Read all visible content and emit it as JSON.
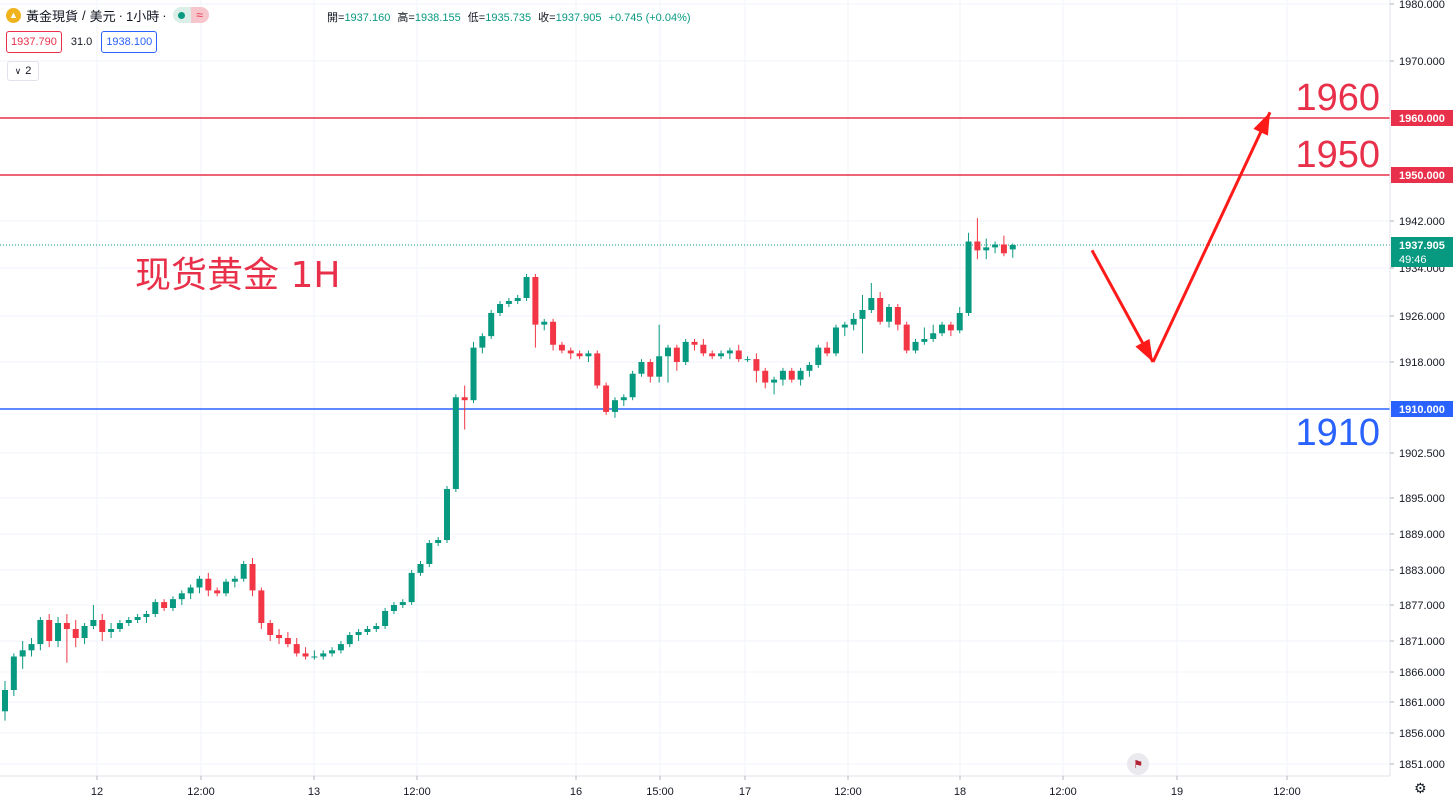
{
  "header": {
    "symbol": "黃金現貨",
    "sep": "/",
    "currency": "美元",
    "interval": "1小時",
    "open_label": "開=",
    "open": "1937.160",
    "high_label": "高=",
    "high": "1938.155",
    "low_label": "低=",
    "low": "1935.735",
    "close_label": "收=",
    "close": "1937.905",
    "change": "+0.745 (+0.04%)"
  },
  "quote": {
    "sell": "1937.790",
    "spread": "31.0",
    "buy": "1938.100"
  },
  "indicators_toggle": "2",
  "colors": {
    "up": "#089981",
    "down": "#f23645",
    "resistance": "#e8304a",
    "support": "#2962ff",
    "arrow": "#ff1a1a"
  },
  "chart_data": {
    "type": "candlestick",
    "annotation": "现货黄金 1H",
    "y_ticks": [
      "1980.000",
      "1970.000",
      "1942.000",
      "1934.000",
      "1926.000",
      "1918.000",
      "1902.500",
      "1895.000",
      "1889.000",
      "1883.000",
      "1877.000",
      "1871.000",
      "1866.000",
      "1861.000",
      "1856.000",
      "1851.000"
    ],
    "x_ticks": [
      "12",
      "12:00",
      "13",
      "12:00",
      "16",
      "15:00",
      "17",
      "12:00",
      "18",
      "12:00",
      "19",
      "12:00"
    ],
    "horizontal_lines": [
      {
        "value": 1960,
        "label": "1960.000",
        "big_label": "1960",
        "color": "#e8304a"
      },
      {
        "value": 1950,
        "label": "1950.000",
        "big_label": "1950",
        "color": "#e8304a"
      },
      {
        "value": 1910,
        "label": "1910.000",
        "big_label": "1910",
        "color": "#2962ff"
      }
    ],
    "last_price": {
      "value": 1937.905,
      "label": "1937.905",
      "countdown": "49:46"
    },
    "forecast_path": [
      {
        "x": 1092,
        "y": 1937
      },
      {
        "x": 1153,
        "y": 1918
      },
      {
        "x": 1270,
        "y": 1961
      }
    ],
    "candles": [
      {
        "o": 1859.5,
        "h": 1864.5,
        "l": 1858.0,
        "c": 1863.0
      },
      {
        "o": 1863.0,
        "h": 1869.0,
        "l": 1862.0,
        "c": 1868.5
      },
      {
        "o": 1868.5,
        "h": 1871.0,
        "l": 1866.5,
        "c": 1869.5
      },
      {
        "o": 1869.5,
        "h": 1871.5,
        "l": 1868.5,
        "c": 1870.5
      },
      {
        "o": 1870.5,
        "h": 1875.0,
        "l": 1869.5,
        "c": 1874.5
      },
      {
        "o": 1874.5,
        "h": 1875.5,
        "l": 1870.0,
        "c": 1871.0
      },
      {
        "o": 1871.0,
        "h": 1875.0,
        "l": 1870.0,
        "c": 1874.0
      },
      {
        "o": 1874.0,
        "h": 1875.5,
        "l": 1867.5,
        "c": 1873.0
      },
      {
        "o": 1873.0,
        "h": 1874.5,
        "l": 1870.0,
        "c": 1871.5
      },
      {
        "o": 1871.5,
        "h": 1874.0,
        "l": 1870.5,
        "c": 1873.5
      },
      {
        "o": 1873.5,
        "h": 1877.0,
        "l": 1873.0,
        "c": 1874.5
      },
      {
        "o": 1874.5,
        "h": 1875.5,
        "l": 1871.0,
        "c": 1872.5
      },
      {
        "o": 1872.5,
        "h": 1874.0,
        "l": 1871.5,
        "c": 1873.0
      },
      {
        "o": 1873.0,
        "h": 1874.5,
        "l": 1872.5,
        "c": 1874.0
      },
      {
        "o": 1874.0,
        "h": 1875.0,
        "l": 1873.5,
        "c": 1874.5
      },
      {
        "o": 1874.5,
        "h": 1875.5,
        "l": 1874.0,
        "c": 1875.0
      },
      {
        "o": 1875.0,
        "h": 1876.0,
        "l": 1874.0,
        "c": 1875.5
      },
      {
        "o": 1875.5,
        "h": 1878.0,
        "l": 1875.0,
        "c": 1877.5
      },
      {
        "o": 1877.5,
        "h": 1878.0,
        "l": 1876.0,
        "c": 1876.5
      },
      {
        "o": 1876.5,
        "h": 1878.5,
        "l": 1876.0,
        "c": 1878.0
      },
      {
        "o": 1878.0,
        "h": 1879.5,
        "l": 1877.0,
        "c": 1879.0
      },
      {
        "o": 1879.0,
        "h": 1880.5,
        "l": 1878.0,
        "c": 1880.0
      },
      {
        "o": 1880.0,
        "h": 1882.0,
        "l": 1879.0,
        "c": 1881.5
      },
      {
        "o": 1881.5,
        "h": 1882.5,
        "l": 1878.5,
        "c": 1879.5
      },
      {
        "o": 1879.5,
        "h": 1880.0,
        "l": 1878.5,
        "c": 1879.0
      },
      {
        "o": 1879.0,
        "h": 1881.5,
        "l": 1878.5,
        "c": 1881.0
      },
      {
        "o": 1881.0,
        "h": 1882.0,
        "l": 1880.0,
        "c": 1881.5
      },
      {
        "o": 1881.5,
        "h": 1884.5,
        "l": 1881.0,
        "c": 1884.0
      },
      {
        "o": 1884.0,
        "h": 1885.0,
        "l": 1878.5,
        "c": 1879.5
      },
      {
        "o": 1879.5,
        "h": 1880.0,
        "l": 1873.0,
        "c": 1874.0
      },
      {
        "o": 1874.0,
        "h": 1874.5,
        "l": 1871.0,
        "c": 1872.0
      },
      {
        "o": 1872.0,
        "h": 1873.0,
        "l": 1870.5,
        "c": 1871.5
      },
      {
        "o": 1871.5,
        "h": 1872.5,
        "l": 1870.0,
        "c": 1870.5
      },
      {
        "o": 1870.5,
        "h": 1871.5,
        "l": 1868.5,
        "c": 1869.0
      },
      {
        "o": 1869.0,
        "h": 1870.0,
        "l": 1868.0,
        "c": 1868.5
      },
      {
        "o": 1868.5,
        "h": 1869.5,
        "l": 1868.0,
        "c": 1868.5
      },
      {
        "o": 1868.5,
        "h": 1869.5,
        "l": 1868.0,
        "c": 1869.0
      },
      {
        "o": 1869.0,
        "h": 1870.0,
        "l": 1868.5,
        "c": 1869.5
      },
      {
        "o": 1869.5,
        "h": 1871.0,
        "l": 1869.0,
        "c": 1870.5
      },
      {
        "o": 1870.5,
        "h": 1872.5,
        "l": 1870.0,
        "c": 1872.0
      },
      {
        "o": 1872.0,
        "h": 1873.0,
        "l": 1871.0,
        "c": 1872.5
      },
      {
        "o": 1872.5,
        "h": 1873.5,
        "l": 1872.0,
        "c": 1873.0
      },
      {
        "o": 1873.0,
        "h": 1874.0,
        "l": 1872.5,
        "c": 1873.5
      },
      {
        "o": 1873.5,
        "h": 1876.5,
        "l": 1873.0,
        "c": 1876.0
      },
      {
        "o": 1876.0,
        "h": 1877.5,
        "l": 1875.5,
        "c": 1877.0
      },
      {
        "o": 1877.0,
        "h": 1878.0,
        "l": 1876.5,
        "c": 1877.5
      },
      {
        "o": 1877.5,
        "h": 1883.0,
        "l": 1877.0,
        "c": 1882.5
      },
      {
        "o": 1882.5,
        "h": 1884.5,
        "l": 1882.0,
        "c": 1884.0
      },
      {
        "o": 1884.0,
        "h": 1888.0,
        "l": 1883.5,
        "c": 1887.5
      },
      {
        "o": 1887.5,
        "h": 1888.5,
        "l": 1887.0,
        "c": 1888.0
      },
      {
        "o": 1888.0,
        "h": 1897.0,
        "l": 1887.5,
        "c": 1896.5
      },
      {
        "o": 1896.5,
        "h": 1912.5,
        "l": 1896.0,
        "c": 1912.0
      },
      {
        "o": 1912.0,
        "h": 1914.0,
        "l": 1906.5,
        "c": 1911.5
      },
      {
        "o": 1911.5,
        "h": 1921.5,
        "l": 1911.0,
        "c": 1920.5
      },
      {
        "o": 1920.5,
        "h": 1923.0,
        "l": 1919.5,
        "c": 1922.5
      },
      {
        "o": 1922.5,
        "h": 1927.0,
        "l": 1922.0,
        "c": 1926.5
      },
      {
        "o": 1926.5,
        "h": 1928.5,
        "l": 1926.0,
        "c": 1928.0
      },
      {
        "o": 1928.0,
        "h": 1929.0,
        "l": 1927.5,
        "c": 1928.5
      },
      {
        "o": 1928.5,
        "h": 1929.5,
        "l": 1928.0,
        "c": 1929.0
      },
      {
        "o": 1929.0,
        "h": 1933.0,
        "l": 1928.5,
        "c": 1932.5
      },
      {
        "o": 1932.5,
        "h": 1933.0,
        "l": 1920.5,
        "c": 1924.5
      },
      {
        "o": 1924.5,
        "h": 1925.5,
        "l": 1923.5,
        "c": 1925.0
      },
      {
        "o": 1925.0,
        "h": 1925.5,
        "l": 1920.0,
        "c": 1921.0
      },
      {
        "o": 1921.0,
        "h": 1921.5,
        "l": 1919.5,
        "c": 1920.0
      },
      {
        "o": 1920.0,
        "h": 1920.5,
        "l": 1918.5,
        "c": 1919.5
      },
      {
        "o": 1919.5,
        "h": 1920.0,
        "l": 1918.5,
        "c": 1919.0
      },
      {
        "o": 1919.0,
        "h": 1920.0,
        "l": 1918.0,
        "c": 1919.5
      },
      {
        "o": 1919.5,
        "h": 1920.0,
        "l": 1913.5,
        "c": 1914.0
      },
      {
        "o": 1914.0,
        "h": 1914.5,
        "l": 1909.0,
        "c": 1909.5
      },
      {
        "o": 1909.5,
        "h": 1912.0,
        "l": 1908.5,
        "c": 1911.5
      },
      {
        "o": 1911.5,
        "h": 1912.5,
        "l": 1910.5,
        "c": 1912.0
      },
      {
        "o": 1912.0,
        "h": 1916.5,
        "l": 1911.5,
        "c": 1916.0
      },
      {
        "o": 1916.0,
        "h": 1918.5,
        "l": 1915.5,
        "c": 1918.0
      },
      {
        "o": 1918.0,
        "h": 1918.5,
        "l": 1914.5,
        "c": 1915.5
      },
      {
        "o": 1915.5,
        "h": 1924.5,
        "l": 1914.5,
        "c": 1919.0
      },
      {
        "o": 1919.0,
        "h": 1921.0,
        "l": 1914.5,
        "c": 1920.5
      },
      {
        "o": 1920.5,
        "h": 1921.0,
        "l": 1916.5,
        "c": 1918.0
      },
      {
        "o": 1918.0,
        "h": 1922.0,
        "l": 1917.5,
        "c": 1921.5
      },
      {
        "o": 1921.5,
        "h": 1922.0,
        "l": 1920.0,
        "c": 1921.0
      },
      {
        "o": 1921.0,
        "h": 1922.0,
        "l": 1919.0,
        "c": 1919.5
      },
      {
        "o": 1919.5,
        "h": 1920.0,
        "l": 1918.5,
        "c": 1919.0
      },
      {
        "o": 1919.0,
        "h": 1920.0,
        "l": 1918.5,
        "c": 1919.5
      },
      {
        "o": 1919.5,
        "h": 1920.5,
        "l": 1918.5,
        "c": 1920.0
      },
      {
        "o": 1920.0,
        "h": 1921.0,
        "l": 1918.0,
        "c": 1918.5
      },
      {
        "o": 1918.5,
        "h": 1919.0,
        "l": 1918.0,
        "c": 1918.5
      },
      {
        "o": 1918.5,
        "h": 1919.5,
        "l": 1914.5,
        "c": 1916.5
      },
      {
        "o": 1916.5,
        "h": 1917.0,
        "l": 1913.5,
        "c": 1914.5
      },
      {
        "o": 1914.5,
        "h": 1915.5,
        "l": 1912.5,
        "c": 1915.0
      },
      {
        "o": 1915.0,
        "h": 1917.0,
        "l": 1914.0,
        "c": 1916.5
      },
      {
        "o": 1916.5,
        "h": 1917.0,
        "l": 1914.5,
        "c": 1915.0
      },
      {
        "o": 1915.0,
        "h": 1917.0,
        "l": 1914.0,
        "c": 1916.5
      },
      {
        "o": 1916.5,
        "h": 1918.0,
        "l": 1915.5,
        "c": 1917.5
      },
      {
        "o": 1917.5,
        "h": 1921.0,
        "l": 1917.0,
        "c": 1920.5
      },
      {
        "o": 1920.5,
        "h": 1921.5,
        "l": 1919.0,
        "c": 1919.5
      },
      {
        "o": 1919.5,
        "h": 1924.5,
        "l": 1919.0,
        "c": 1924.0
      },
      {
        "o": 1924.0,
        "h": 1925.0,
        "l": 1922.5,
        "c": 1924.5
      },
      {
        "o": 1924.5,
        "h": 1926.5,
        "l": 1923.5,
        "c": 1925.5
      },
      {
        "o": 1925.5,
        "h": 1929.5,
        "l": 1919.5,
        "c": 1927.0
      },
      {
        "o": 1927.0,
        "h": 1931.5,
        "l": 1926.5,
        "c": 1929.0
      },
      {
        "o": 1929.0,
        "h": 1930.0,
        "l": 1924.5,
        "c": 1925.0
      },
      {
        "o": 1925.0,
        "h": 1928.0,
        "l": 1924.0,
        "c": 1927.5
      },
      {
        "o": 1927.5,
        "h": 1928.0,
        "l": 1923.5,
        "c": 1924.5
      },
      {
        "o": 1924.5,
        "h": 1925.0,
        "l": 1919.5,
        "c": 1920.0
      },
      {
        "o": 1920.0,
        "h": 1922.0,
        "l": 1919.5,
        "c": 1921.5
      },
      {
        "o": 1921.5,
        "h": 1924.0,
        "l": 1921.0,
        "c": 1922.0
      },
      {
        "o": 1922.0,
        "h": 1924.5,
        "l": 1921.5,
        "c": 1923.0
      },
      {
        "o": 1923.0,
        "h": 1925.0,
        "l": 1922.5,
        "c": 1924.5
      },
      {
        "o": 1924.5,
        "h": 1925.0,
        "l": 1922.5,
        "c": 1923.5
      },
      {
        "o": 1923.5,
        "h": 1927.5,
        "l": 1923.0,
        "c": 1926.5
      },
      {
        "o": 1926.5,
        "h": 1940.0,
        "l": 1926.0,
        "c": 1938.5
      },
      {
        "o": 1938.5,
        "h": 1942.5,
        "l": 1935.5,
        "c": 1937.0
      },
      {
        "o": 1937.0,
        "h": 1939.0,
        "l": 1935.5,
        "c": 1937.5
      },
      {
        "o": 1937.5,
        "h": 1938.5,
        "l": 1936.5,
        "c": 1938.0
      },
      {
        "o": 1938.0,
        "h": 1939.5,
        "l": 1936.0,
        "c": 1936.5
      },
      {
        "o": 1937.16,
        "h": 1938.155,
        "l": 1935.735,
        "c": 1937.905
      }
    ]
  }
}
